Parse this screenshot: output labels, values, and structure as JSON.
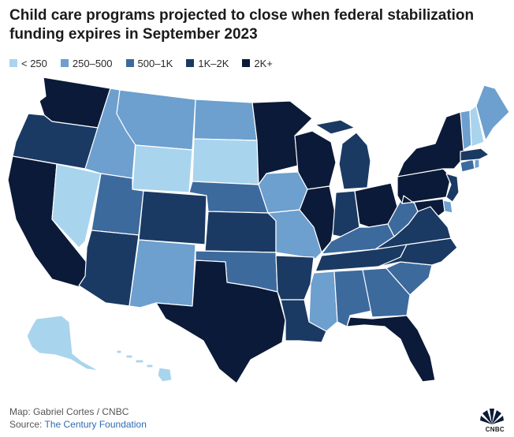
{
  "title": "Child care programs projected to close when federal stabilization funding expires in September 2023",
  "legend": [
    {
      "label": "< 250",
      "color": "#a9d4ee"
    },
    {
      "label": "250–500",
      "color": "#6d9fcf"
    },
    {
      "label": "500–1K",
      "color": "#3d6a9d"
    },
    {
      "label": "1K–2K",
      "color": "#1a3a63"
    },
    {
      "label": "2K+",
      "color": "#0b1a38"
    }
  ],
  "states": {
    "WA": "2K+",
    "OR": "1K–2K",
    "CA": "2K+",
    "NV": "< 250",
    "ID": "250–500",
    "MT": "250–500",
    "WY": "< 250",
    "UT": "500–1K",
    "AZ": "1K–2K",
    "CO": "1K–2K",
    "NM": "250–500",
    "ND": "250–500",
    "SD": "< 250",
    "NE": "500–1K",
    "KS": "1K–2K",
    "OK": "500–1K",
    "TX": "2K+",
    "MN": "2K+",
    "IA": "250–500",
    "MO": "250–500",
    "AR": "1K–2K",
    "LA": "1K–2K",
    "WI": "2K+",
    "IL": "2K+",
    "MI": "1K–2K",
    "IN": "1K–2K",
    "OH": "2K+",
    "KY": "500–1K",
    "TN": "1K–2K",
    "MS": "250–500",
    "AL": "500–1K",
    "GA": "500–1K",
    "FL": "2K+",
    "SC": "500–1K",
    "NC": "1K–2K",
    "VA": "1K–2K",
    "WV": "500–1K",
    "PA": "2K+",
    "NY": "2K+",
    "NJ": "1K–2K",
    "DE": "250–500",
    "MD": "2K+",
    "CT": "500–1K",
    "RI": "250–500",
    "MA": "1K–2K",
    "VT": "250–500",
    "NH": "< 250",
    "ME": "250–500",
    "AK": "< 250",
    "HI": "< 250"
  },
  "footer": {
    "map_credit": "Map: Gabriel Cortes / CNBC",
    "source_label": "Source:",
    "source_name": "The Century Foundation"
  },
  "logo_text": "CNBC"
}
